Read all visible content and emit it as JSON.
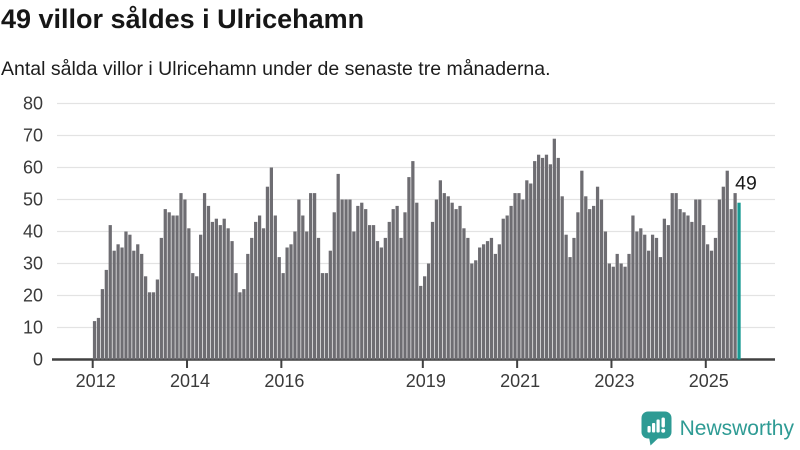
{
  "header": {
    "title": "49 villor såldes i Ulricehamn",
    "subtitle": "Antal sålda villor i Ulricehamn under de senaste tre månaderna."
  },
  "chart_data": {
    "type": "bar",
    "title": "49 villor såldes i Ulricehamn",
    "subtitle": "Antal sålda villor i Ulricehamn under de senaste tre månaderna.",
    "unit": "sålda villor (rullande tre månader)",
    "frequency": "monthly",
    "start_month": "2012-01",
    "end_month": "2025-09",
    "values": [
      12,
      13,
      22,
      28,
      42,
      34,
      36,
      35,
      40,
      39,
      34,
      36,
      33,
      26,
      21,
      21,
      25,
      38,
      47,
      46,
      45,
      45,
      52,
      50,
      41,
      27,
      26,
      39,
      52,
      48,
      43,
      44,
      42,
      44,
      41,
      37,
      27,
      21,
      22,
      33,
      38,
      43,
      45,
      41,
      54,
      60,
      45,
      32,
      27,
      35,
      36,
      40,
      50,
      45,
      40,
      52,
      52,
      38,
      27,
      27,
      34,
      46,
      58,
      50,
      50,
      50,
      40,
      48,
      49,
      47,
      42,
      42,
      37,
      35,
      38,
      43,
      47,
      48,
      38,
      46,
      57,
      62,
      49,
      23,
      26,
      30,
      43,
      50,
      56,
      52,
      51,
      49,
      47,
      48,
      41,
      38,
      30,
      31,
      35,
      36,
      37,
      38,
      33,
      36,
      44,
      45,
      48,
      52,
      52,
      50,
      56,
      55,
      62,
      64,
      63,
      64,
      61,
      69,
      63,
      51,
      39,
      32,
      38,
      46,
      59,
      51,
      47,
      48,
      54,
      50,
      40,
      30,
      29,
      33,
      30,
      29,
      33,
      45,
      40,
      41,
      39,
      34,
      39,
      38,
      32,
      44,
      42,
      52,
      52,
      47,
      46,
      45,
      43,
      50,
      50,
      42,
      36,
      34,
      38,
      50,
      54,
      59,
      47,
      52,
      49
    ],
    "highlight_last": true,
    "last_value": 49,
    "last_value_label": "49",
    "bar_color": "#6e6d72",
    "highlight_color": "#189a93",
    "ylim": [
      0,
      80
    ],
    "yticks": [
      0,
      10,
      20,
      30,
      40,
      50,
      60,
      70,
      80
    ],
    "xticks": [
      {
        "label": "2012",
        "month_index": 0
      },
      {
        "label": "2014",
        "month_index": 24
      },
      {
        "label": "2016",
        "month_index": 48
      },
      {
        "label": "2019",
        "month_index": 84
      },
      {
        "label": "2021",
        "month_index": 108
      },
      {
        "label": "2023",
        "month_index": 132
      },
      {
        "label": "2025",
        "month_index": 156
      }
    ],
    "grid": "horizontal",
    "grid_color": "#e3e3e3",
    "axis_color": "#414141",
    "tick_label_color": "#3a3a3a",
    "annotation_color": "#1a1a1a",
    "legend": "none"
  },
  "footer": {
    "brand": "Newsworthy",
    "brand_color": "#2e9b94"
  }
}
